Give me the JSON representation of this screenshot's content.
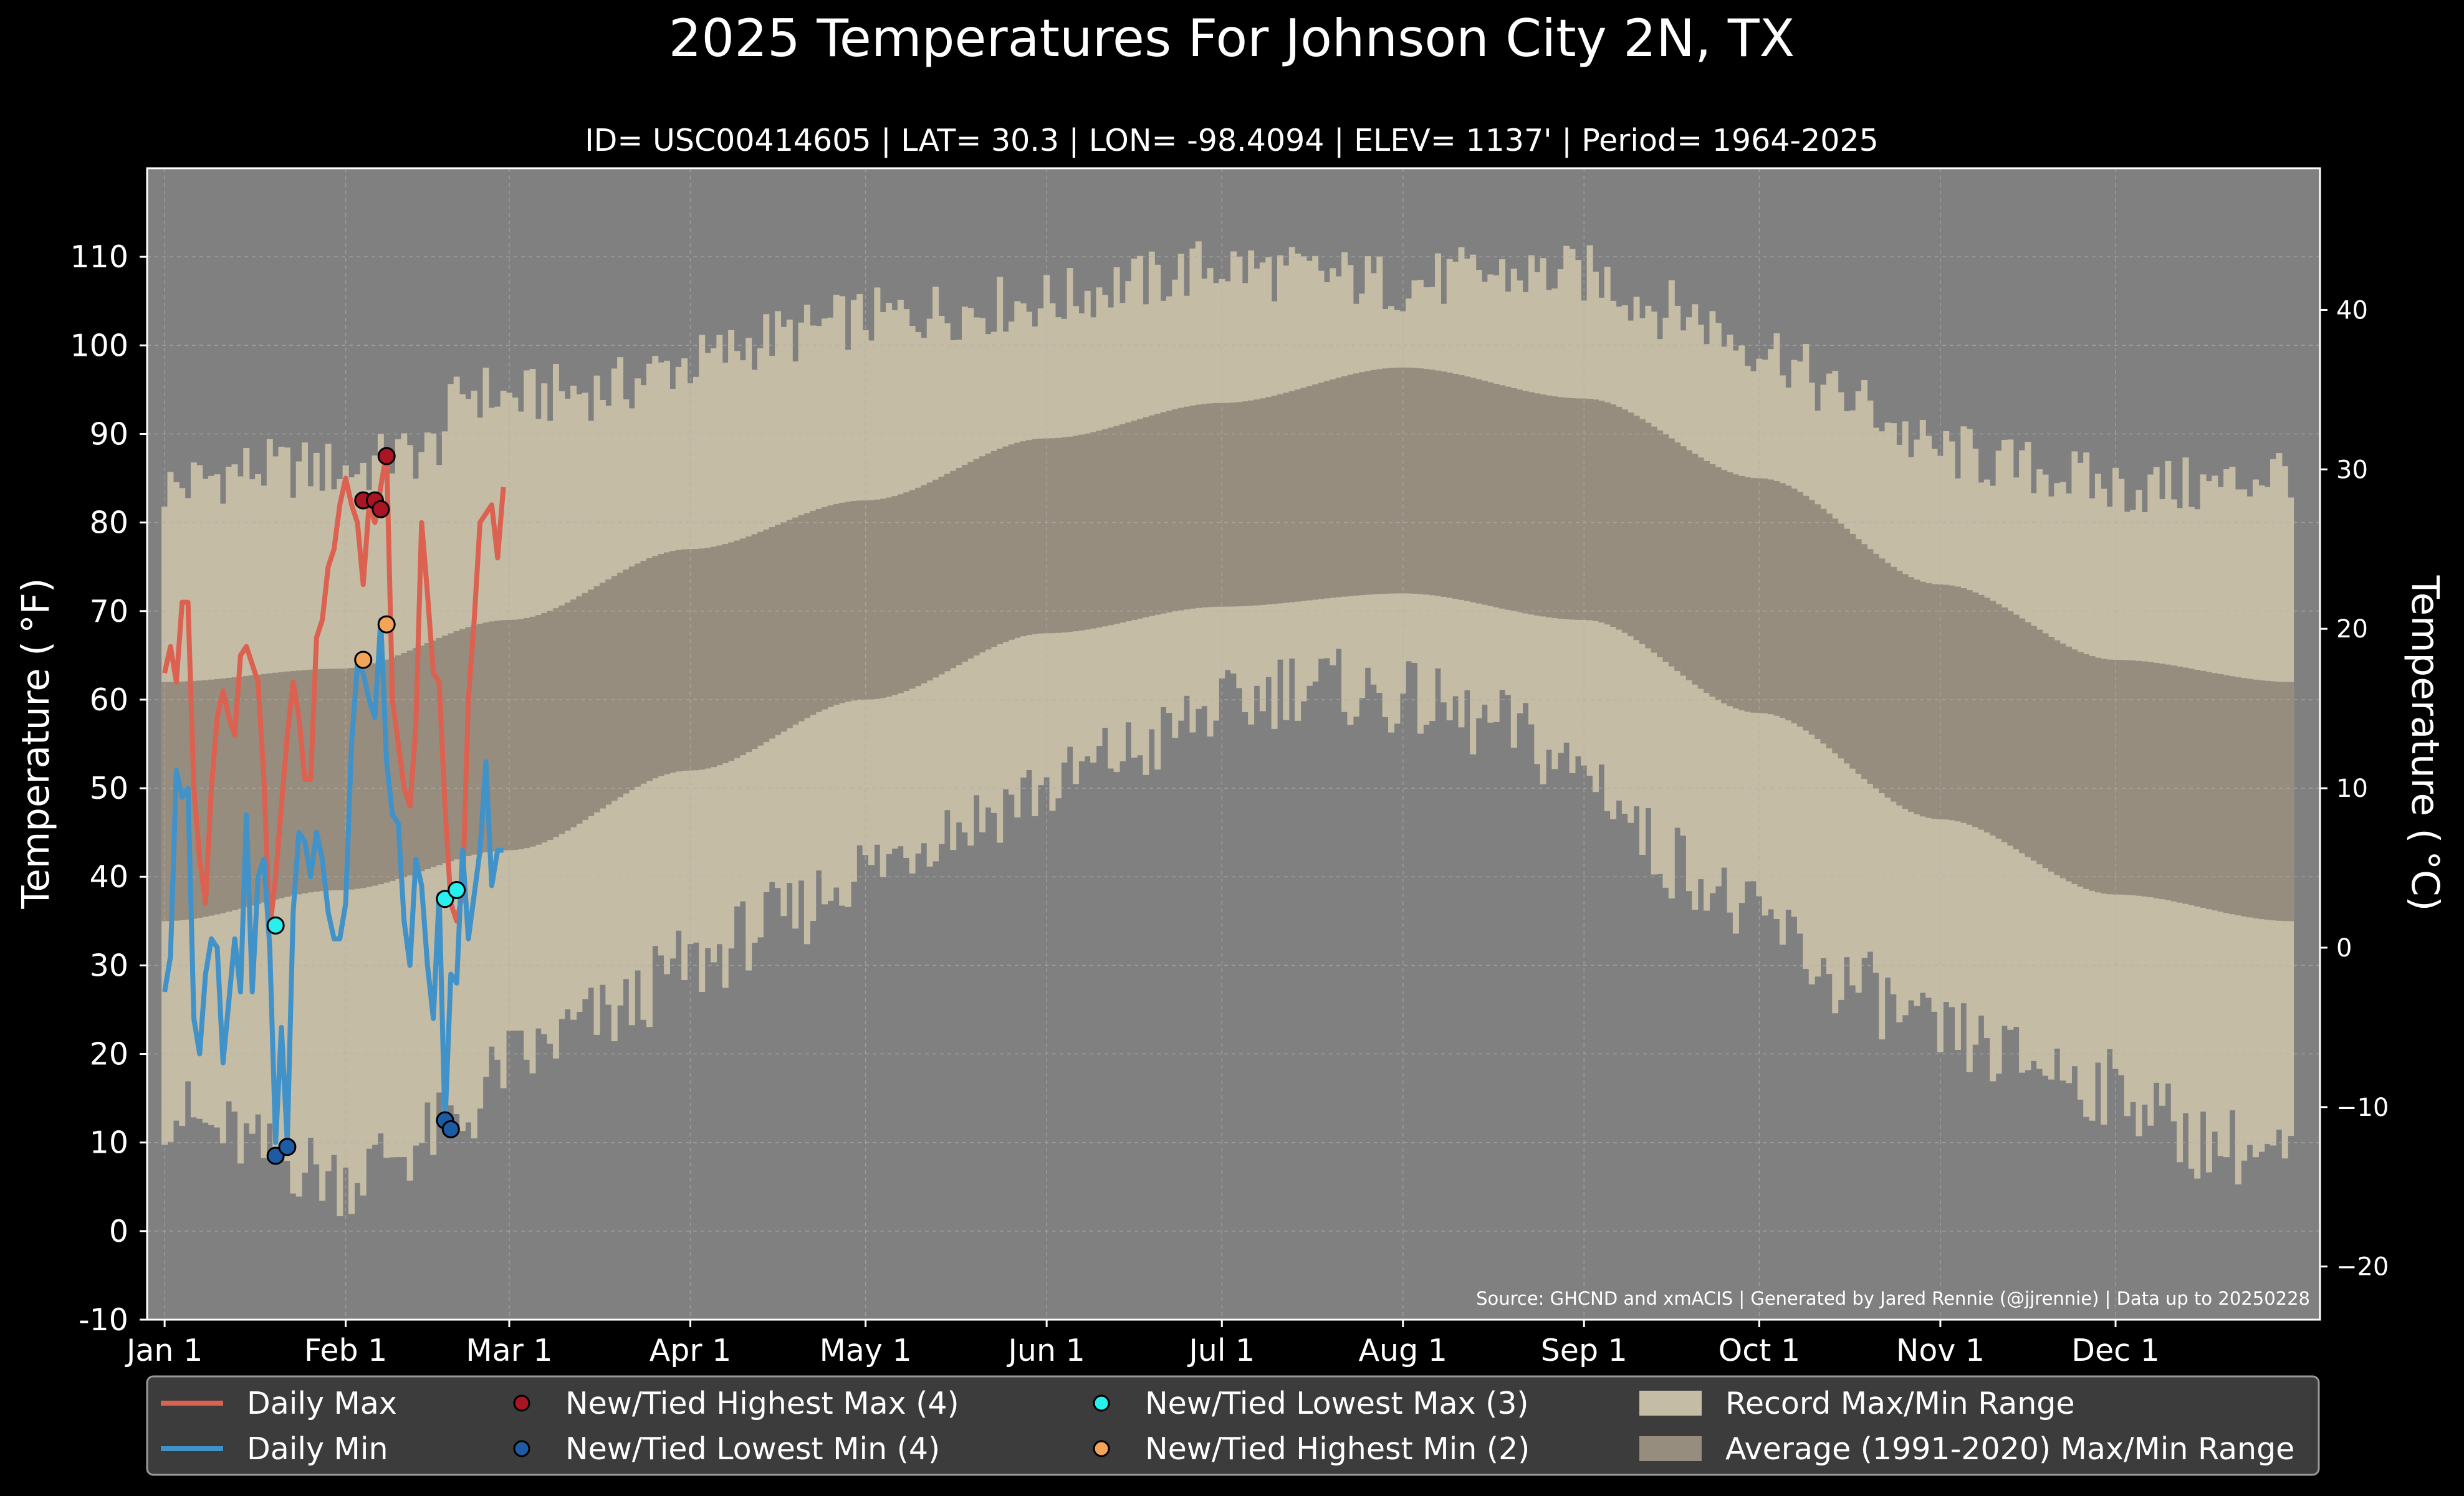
{
  "chart_data": {
    "type": "line",
    "title": "2025 Temperatures For Johnson City 2N, TX",
    "subtitle": "ID= USC00414605 | LAT= 30.3 | LON= -98.4094 | ELEV= 1137' | Period= 1964-2025",
    "ylabel_left": "Temperature ($^\\circ$F)",
    "ylabel_right": "Temperature ($^\\circ$C)",
    "ylabel_left_text": "Temperature ( °F)",
    "ylabel_right_text": "Temperature ( °C)",
    "source": "Source: GHCND and xmACIS | Generated by Jared Rennie (@jjrennie) | Data up to 20250228",
    "ylim": [
      -10,
      120
    ],
    "xlim_days": [
      -3,
      369
    ],
    "x_axis": "date",
    "year": 2025,
    "yticks_left": [
      "-10",
      "0",
      "10",
      "20",
      "30",
      "40",
      "50",
      "60",
      "70",
      "80",
      "90",
      "100",
      "110"
    ],
    "yticks_right": [
      "−20",
      "−10",
      "0",
      "10",
      "20",
      "30",
      "40"
    ],
    "xticks": [
      {
        "date": "2025-01-01",
        "label": "Jan 1"
      },
      {
        "date": "2025-02-01",
        "label": "Feb 1"
      },
      {
        "date": "2025-03-01",
        "label": "Mar 1"
      },
      {
        "date": "2025-04-01",
        "label": "Apr 1"
      },
      {
        "date": "2025-05-01",
        "label": "May 1"
      },
      {
        "date": "2025-06-01",
        "label": "Jun 1"
      },
      {
        "date": "2025-07-01",
        "label": "Jul 1"
      },
      {
        "date": "2025-08-01",
        "label": "Aug 1"
      },
      {
        "date": "2025-09-01",
        "label": "Sep 1"
      },
      {
        "date": "2025-10-01",
        "label": "Oct 1"
      },
      {
        "date": "2025-11-01",
        "label": "Nov 1"
      },
      {
        "date": "2025-12-01",
        "label": "Dec 1"
      }
    ],
    "grid": true,
    "legend_position": "bottom",
    "legend": [
      {
        "label": "Daily Max",
        "kind": "line",
        "color": "#dc6150"
      },
      {
        "label": "Daily Min",
        "kind": "line",
        "color": "#4192c8"
      },
      {
        "label": "New/Tied Highest Max (4)",
        "kind": "dot",
        "color": "#a91525"
      },
      {
        "label": "New/Tied Lowest Min (4)",
        "kind": "dot",
        "color": "#1d5ca4"
      },
      {
        "label": "New/Tied Lowest Max (3)",
        "kind": "dot",
        "color": "#28f0ee"
      },
      {
        "label": "New/Tied Highest Min (2)",
        "kind": "dot",
        "color": "#f4a457"
      },
      {
        "label": "Record Max/Min Range",
        "kind": "patch",
        "color": "#c4bca5"
      },
      {
        "label": "Average (1991-2020) Max/Min Range",
        "kind": "patch",
        "color": "#978d7e"
      }
    ],
    "colors": {
      "background": "#000000",
      "plot_bg": "#808080",
      "record_range": "#c4bca5",
      "normal_range": "#978d7e",
      "daily_max": "#dc6150",
      "daily_min": "#4192c8",
      "legend_bg": "#3c3c3c"
    },
    "normal_range": {
      "description_keys": "day-of-year curve points",
      "max_points": [
        [
          0,
          62
        ],
        [
          30,
          63.5
        ],
        [
          59,
          69
        ],
        [
          90,
          77
        ],
        [
          120,
          82.5
        ],
        [
          151,
          89.5
        ],
        [
          181,
          93.5
        ],
        [
          212,
          97.5
        ],
        [
          243,
          94
        ],
        [
          273,
          85
        ],
        [
          304,
          73
        ],
        [
          334,
          64.5
        ],
        [
          364,
          62
        ]
      ],
      "min_points": [
        [
          0,
          35
        ],
        [
          30,
          38.5
        ],
        [
          59,
          43
        ],
        [
          90,
          52
        ],
        [
          120,
          60
        ],
        [
          151,
          67.5
        ],
        [
          181,
          70.5
        ],
        [
          212,
          72
        ],
        [
          243,
          69
        ],
        [
          273,
          58.5
        ],
        [
          304,
          46.5
        ],
        [
          334,
          38
        ],
        [
          364,
          35
        ]
      ]
    },
    "record_range": {
      "max_points": [
        [
          0,
          84
        ],
        [
          15,
          86
        ],
        [
          31,
          86
        ],
        [
          45,
          88
        ],
        [
          52,
          95
        ],
        [
          59,
          94
        ],
        [
          75,
          95
        ],
        [
          90,
          98
        ],
        [
          105,
          101
        ],
        [
          120,
          103
        ],
        [
          135,
          104
        ],
        [
          151,
          105
        ],
        [
          165,
          107
        ],
        [
          181,
          109
        ],
        [
          195,
          108
        ],
        [
          212,
          107
        ],
        [
          228,
          108
        ],
        [
          243,
          108
        ],
        [
          258,
          104
        ],
        [
          273,
          100
        ],
        [
          288,
          94
        ],
        [
          304,
          88
        ],
        [
          320,
          86
        ],
        [
          334,
          84
        ],
        [
          350,
          84
        ],
        [
          364,
          86
        ]
      ],
      "min_points": [
        [
          0,
          14
        ],
        [
          10,
          11
        ],
        [
          20,
          8
        ],
        [
          31,
          6
        ],
        [
          40,
          9
        ],
        [
          50,
          12
        ],
        [
          59,
          19
        ],
        [
          75,
          24
        ],
        [
          90,
          30
        ],
        [
          105,
          35
        ],
        [
          120,
          41
        ],
        [
          135,
          46
        ],
        [
          151,
          50
        ],
        [
          165,
          54
        ],
        [
          181,
          59
        ],
        [
          195,
          62
        ],
        [
          212,
          60
        ],
        [
          228,
          57
        ],
        [
          243,
          52
        ],
        [
          258,
          42
        ],
        [
          273,
          35
        ],
        [
          288,
          28
        ],
        [
          304,
          22
        ],
        [
          320,
          19
        ],
        [
          334,
          16
        ],
        [
          350,
          10
        ],
        [
          364,
          8
        ]
      ]
    },
    "series": [
      {
        "name": "Daily Max",
        "x": [
          "2025-01-01",
          "2025-01-02",
          "2025-01-03",
          "2025-01-04",
          "2025-01-05",
          "2025-01-06",
          "2025-01-07",
          "2025-01-08",
          "2025-01-09",
          "2025-01-10",
          "2025-01-11",
          "2025-01-12",
          "2025-01-13",
          "2025-01-14",
          "2025-01-15",
          "2025-01-16",
          "2025-01-17",
          "2025-01-18",
          "2025-01-19",
          "2025-01-20",
          "2025-01-21",
          "2025-01-22",
          "2025-01-23",
          "2025-01-24",
          "2025-01-25",
          "2025-01-26",
          "2025-01-27",
          "2025-01-28",
          "2025-01-29",
          "2025-01-30",
          "2025-01-31",
          "2025-02-01",
          "2025-02-02",
          "2025-02-03",
          "2025-02-04",
          "2025-02-05",
          "2025-02-06",
          "2025-02-07",
          "2025-02-08",
          "2025-02-09",
          "2025-02-10",
          "2025-02-11",
          "2025-02-12",
          "2025-02-13",
          "2025-02-14",
          "2025-02-15",
          "2025-02-16",
          "2025-02-17",
          "2025-02-18",
          "2025-02-19",
          "2025-02-20",
          "2025-02-21",
          "2025-02-22",
          "2025-02-23",
          "2025-02-24",
          "2025-02-25",
          "2025-02-26",
          "2025-02-27",
          "2025-02-28"
        ],
        "values": [
          63,
          66,
          62,
          71,
          71,
          50,
          42,
          37,
          50,
          58,
          61,
          58,
          56,
          65,
          66,
          64,
          62,
          51,
          34,
          40,
          48,
          56,
          62,
          58,
          51,
          51,
          67,
          69,
          75,
          77,
          82,
          85,
          82,
          80,
          73,
          82,
          80,
          84,
          88,
          60,
          55,
          50,
          48,
          57,
          80,
          72,
          63,
          62,
          48,
          37,
          35,
          38,
          60,
          69,
          80,
          81,
          82,
          76,
          84
        ]
      },
      {
        "name": "Daily Min",
        "x": [
          "2025-01-01",
          "2025-01-02",
          "2025-01-03",
          "2025-01-04",
          "2025-01-05",
          "2025-01-06",
          "2025-01-07",
          "2025-01-08",
          "2025-01-09",
          "2025-01-10",
          "2025-01-11",
          "2025-01-12",
          "2025-01-13",
          "2025-01-14",
          "2025-01-15",
          "2025-01-16",
          "2025-01-17",
          "2025-01-18",
          "2025-01-19",
          "2025-01-20",
          "2025-01-21",
          "2025-01-22",
          "2025-01-23",
          "2025-01-24",
          "2025-01-25",
          "2025-01-26",
          "2025-01-27",
          "2025-01-28",
          "2025-01-29",
          "2025-01-30",
          "2025-01-31",
          "2025-02-01",
          "2025-02-02",
          "2025-02-03",
          "2025-02-04",
          "2025-02-05",
          "2025-02-06",
          "2025-02-07",
          "2025-02-08",
          "2025-02-09",
          "2025-02-10",
          "2025-02-11",
          "2025-02-12",
          "2025-02-13",
          "2025-02-14",
          "2025-02-15",
          "2025-02-16",
          "2025-02-17",
          "2025-02-18",
          "2025-02-19",
          "2025-02-20",
          "2025-02-21",
          "2025-02-22",
          "2025-02-23",
          "2025-02-24",
          "2025-02-25",
          "2025-02-26",
          "2025-02-27",
          "2025-02-28"
        ],
        "values": [
          27,
          31,
          52,
          49,
          50,
          24,
          20,
          29,
          33,
          32,
          19,
          26,
          33,
          27,
          47,
          27,
          40,
          42,
          32,
          10,
          23,
          10,
          36,
          45,
          44,
          40,
          45,
          42,
          36,
          33,
          33,
          37,
          55,
          64,
          63,
          60,
          58,
          69,
          53,
          47,
          46,
          35,
          30,
          42,
          39,
          30,
          24,
          38,
          12,
          29,
          28,
          43,
          33,
          38,
          43,
          53,
          39,
          43,
          43
        ]
      }
    ],
    "record_points": [
      {
        "series": "New/Tied Highest Max (4)",
        "points": [
          {
            "x": "2025-02-04",
            "y": 82.5
          },
          {
            "x": "2025-02-06",
            "y": 82.5
          },
          {
            "x": "2025-02-07",
            "y": 81.5
          },
          {
            "x": "2025-02-08",
            "y": 87.5
          }
        ]
      },
      {
        "series": "New/Tied Lowest Min (4)",
        "points": [
          {
            "x": "2025-01-20",
            "y": 8.5
          },
          {
            "x": "2025-01-22",
            "y": 9.5
          },
          {
            "x": "2025-02-18",
            "y": 12.5
          },
          {
            "x": "2025-02-19",
            "y": 11.5
          }
        ]
      },
      {
        "series": "New/Tied Lowest Max (3)",
        "points": [
          {
            "x": "2025-01-20",
            "y": 34.5
          },
          {
            "x": "2025-02-18",
            "y": 37.5
          },
          {
            "x": "2025-02-20",
            "y": 38.5
          }
        ]
      },
      {
        "series": "New/Tied Highest Min (2)",
        "points": [
          {
            "x": "2025-02-04",
            "y": 64.5
          },
          {
            "x": "2025-02-08",
            "y": 68.5
          }
        ]
      }
    ]
  }
}
